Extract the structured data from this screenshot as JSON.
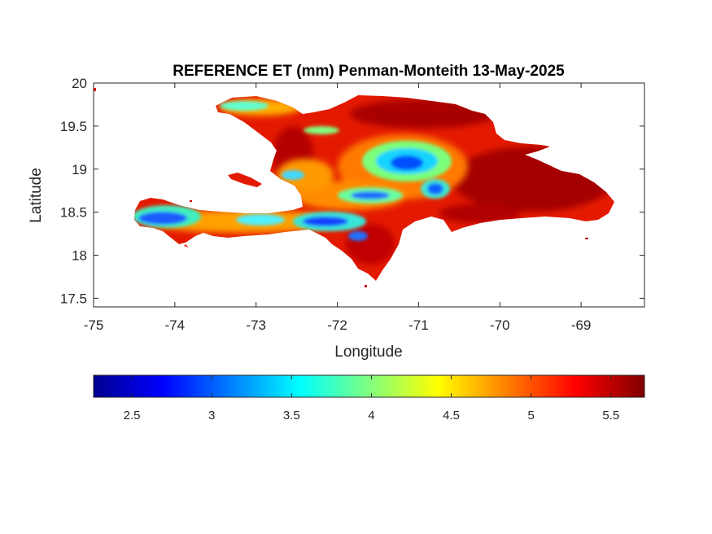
{
  "figure": {
    "title": "REFERENCE ET (mm) Penman-Monteith 13-May-2025",
    "xlabel": "Longitude",
    "ylabel": "Latitude"
  },
  "map_data": {
    "type": "raster-map",
    "region": "Hispaniola (Haiti / Dominican Republic)",
    "variable": "Reference evapotranspiration (mm)",
    "xlim": [
      -75,
      -68.22
    ],
    "ylim": [
      17.4,
      20.0
    ],
    "xticks": [
      "-75",
      "-74",
      "-73",
      "-72",
      "-71",
      "-70",
      "-69"
    ],
    "yticks": [
      "20",
      "19.5",
      "19",
      "18.5",
      "18",
      "17.5"
    ],
    "colormap": "jet",
    "clim": [
      2.26,
      5.71
    ],
    "colorbar_ticks": [
      "2.5",
      "3",
      "3.5",
      "4",
      "4.5",
      "5",
      "5.5"
    ],
    "colorbar_location": "southoutside",
    "grid": false,
    "low_value_zones": [
      {
        "lon": -71.2,
        "lat": 19.05,
        "value": 2.8
      },
      {
        "lon": -71.75,
        "lat": 18.68,
        "value": 3.1
      },
      {
        "lon": -70.8,
        "lat": 18.8,
        "value": 3.0
      },
      {
        "lon": -73.9,
        "lat": 18.38,
        "value": 3.1
      },
      {
        "lon": -72.2,
        "lat": 18.4,
        "value": 3.0
      },
      {
        "lon": -72.8,
        "lat": 18.42,
        "value": 3.4
      },
      {
        "lon": -73.3,
        "lat": 19.75,
        "value": 3.6
      }
    ],
    "high_value_zones": [
      {
        "lon": -69.5,
        "lat": 18.85,
        "value": 5.6
      },
      {
        "lon": -71.2,
        "lat": 19.75,
        "value": 5.5
      },
      {
        "lon": -70.3,
        "lat": 18.4,
        "value": 5.4
      }
    ]
  },
  "colors": {
    "axis": "#262626",
    "ocean": "#ffffff"
  }
}
